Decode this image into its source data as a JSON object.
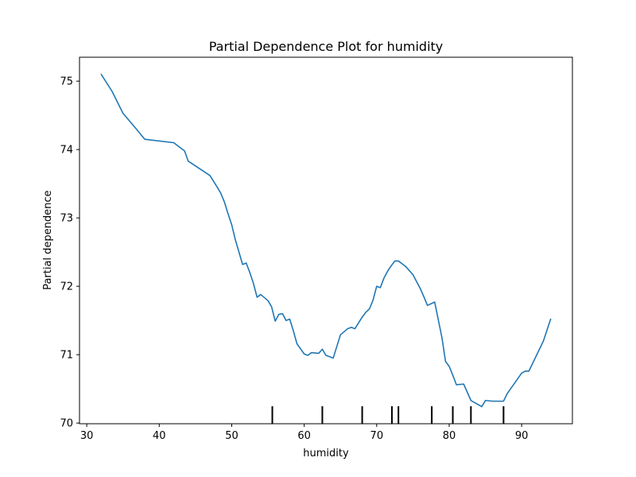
{
  "chart_data": {
    "type": "line",
    "title": "Partial Dependence Plot for humidity",
    "xlabel": "humidity",
    "ylabel": "Partial dependence",
    "xlim": [
      29.0,
      97.0
    ],
    "ylim": [
      69.99,
      75.35
    ],
    "x_ticks": [
      30,
      40,
      50,
      60,
      70,
      80,
      90
    ],
    "y_ticks": [
      70,
      71,
      72,
      73,
      74,
      75
    ],
    "grid": false,
    "legend": "none",
    "series": [
      {
        "color": "#1f77b4",
        "x": [
          32,
          33.5,
          35,
          37,
          38,
          42,
          43.5,
          44,
          47,
          48,
          48.5,
          49,
          49.5,
          50,
          50.5,
          51,
          51.5,
          52,
          52.5,
          53,
          53.5,
          54,
          55,
          55.5,
          56,
          56.5,
          57,
          57.5,
          58,
          58.5,
          59,
          60,
          60.5,
          61,
          62,
          62.5,
          63,
          64,
          65,
          66,
          66.5,
          67,
          68,
          68.5,
          69,
          69.5,
          70,
          70.5,
          71,
          71.5,
          72,
          72.5,
          73,
          73.5,
          74,
          75,
          76,
          76.5,
          77,
          78,
          79,
          79.5,
          80,
          80.5,
          81,
          82,
          83,
          84.5,
          85,
          86,
          87.5,
          88,
          90,
          90.5,
          91,
          93,
          94
        ],
        "y": [
          75.1,
          74.85,
          74.53,
          74.28,
          74.15,
          74.1,
          73.98,
          73.83,
          73.62,
          73.45,
          73.36,
          73.23,
          73.06,
          72.9,
          72.68,
          72.5,
          72.32,
          72.34,
          72.2,
          72.04,
          71.84,
          71.88,
          71.79,
          71.7,
          71.49,
          71.59,
          71.6,
          71.5,
          71.52,
          71.35,
          71.16,
          71.01,
          70.99,
          71.03,
          71.02,
          71.08,
          70.99,
          70.95,
          71.29,
          71.38,
          71.4,
          71.38,
          71.55,
          71.62,
          71.67,
          71.8,
          72.0,
          71.98,
          72.12,
          72.22,
          72.3,
          72.37,
          72.37,
          72.33,
          72.29,
          72.17,
          71.97,
          71.85,
          71.72,
          71.77,
          71.25,
          70.9,
          70.83,
          70.7,
          70.56,
          70.57,
          70.33,
          70.24,
          70.33,
          70.32,
          70.32,
          70.43,
          70.73,
          70.76,
          70.76,
          71.2,
          71.52
        ]
      }
    ],
    "rug_x": [
      55.6,
      62.5,
      68.0,
      72.1,
      73.0,
      77.6,
      80.5,
      83.0,
      87.5
    ],
    "rug_label": "deciles"
  }
}
